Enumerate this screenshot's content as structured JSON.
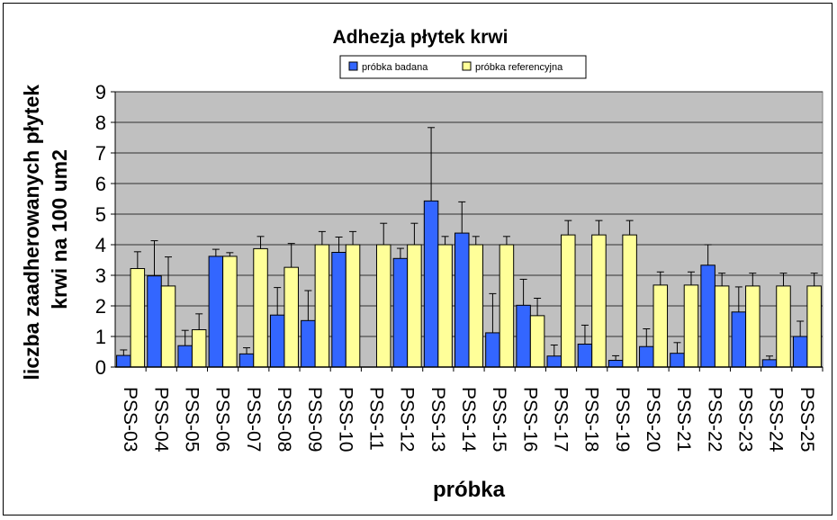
{
  "chart_data": {
    "type": "bar",
    "title": "Adhezja płytek krwi",
    "xlabel": "próbka",
    "ylabel_lines": [
      "liczba zaadherowanych płytek",
      "krwi na 100 um2"
    ],
    "ylim": [
      0,
      9
    ],
    "yticks": [
      "0",
      "1",
      "2",
      "3",
      "4",
      "5",
      "6",
      "7",
      "8",
      "9"
    ],
    "grid": true,
    "legend_position": "top-center",
    "categories": [
      "PSS-03",
      "PSS-04",
      "PSS-05",
      "PSS-06",
      "PSS-07",
      "PSS-08",
      "PSS-09",
      "PSS-10",
      "PSS-11",
      "PSS-12",
      "PSS-13",
      "PSS-14",
      "PSS-15",
      "PSS-16",
      "PSS-17",
      "PSS-18",
      "PSS-19",
      "PSS-20",
      "PSS-21",
      "PSS-22",
      "PSS-23",
      "PSS-24",
      "PSS-25"
    ],
    "series": [
      {
        "name": "próbka badana",
        "color": "#3366FF",
        "values": [
          0.38,
          2.98,
          0.7,
          3.62,
          0.43,
          1.7,
          1.52,
          3.75,
          0.0,
          3.55,
          5.43,
          4.38,
          1.12,
          2.02,
          0.36,
          0.75,
          0.22,
          0.67,
          0.45,
          3.33,
          1.8,
          0.24,
          1.0
        ],
        "errors": [
          0.18,
          1.15,
          0.5,
          0.23,
          0.2,
          0.9,
          0.98,
          0.5,
          0.0,
          0.33,
          2.4,
          1.02,
          1.28,
          0.85,
          0.36,
          0.62,
          0.15,
          0.58,
          0.35,
          0.67,
          0.82,
          0.12,
          0.5
        ]
      },
      {
        "name": "próbka referencyjna",
        "color": "#FFFF99",
        "values": [
          3.22,
          2.65,
          1.22,
          3.62,
          3.87,
          3.26,
          4.0,
          4.0,
          4.0,
          4.0,
          4.0,
          4.0,
          4.0,
          1.68,
          4.32,
          4.32,
          4.32,
          2.68,
          2.68,
          2.65,
          2.65,
          2.65,
          2.65
        ],
        "errors": [
          0.55,
          0.95,
          0.52,
          0.12,
          0.4,
          0.78,
          0.43,
          0.43,
          0.7,
          0.7,
          0.27,
          0.27,
          0.27,
          0.57,
          0.47,
          0.47,
          0.47,
          0.43,
          0.43,
          0.42,
          0.42,
          0.42,
          0.42
        ]
      }
    ]
  }
}
